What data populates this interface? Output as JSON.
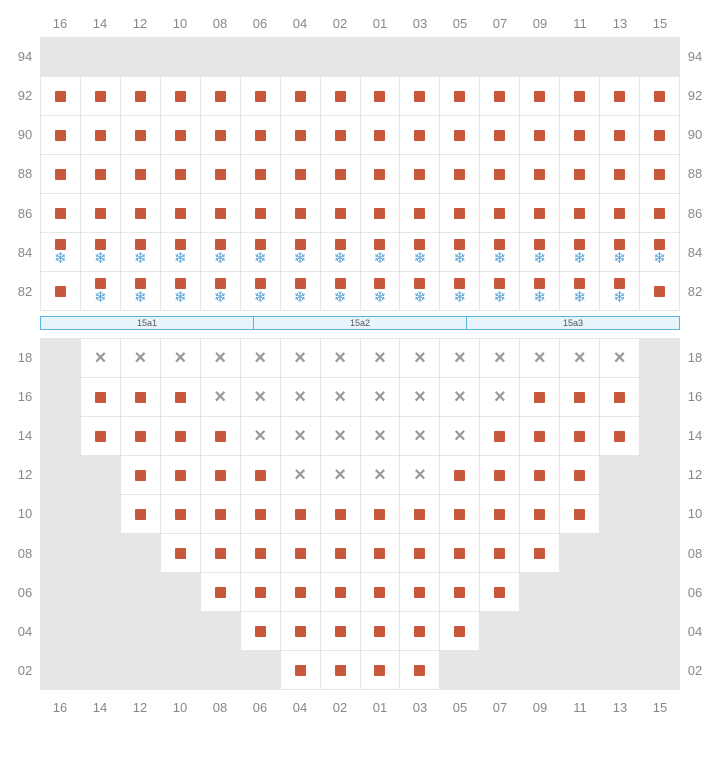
{
  "colors": {
    "seat_square": "#c9573b",
    "snowflake": "#5ba3d6",
    "cross": "#999",
    "grid_bg": "#e6e6e6",
    "cell_active": "#ffffff",
    "label": "#888",
    "section_border": "#5bb3e8",
    "section_bg": "#e8f4fb"
  },
  "columns": [
    "16",
    "14",
    "12",
    "10",
    "08",
    "06",
    "04",
    "02",
    "01",
    "03",
    "05",
    "07",
    "09",
    "11",
    "13",
    "15"
  ],
  "upper": {
    "row_labels": [
      "94",
      "92",
      "90",
      "88",
      "86",
      "84",
      "82"
    ],
    "rows": [
      [
        {
          "t": "gray"
        },
        {
          "t": "gray"
        },
        {
          "t": "gray"
        },
        {
          "t": "gray"
        },
        {
          "t": "gray"
        },
        {
          "t": "gray"
        },
        {
          "t": "gray"
        },
        {
          "t": "gray"
        },
        {
          "t": "gray"
        },
        {
          "t": "gray"
        },
        {
          "t": "gray"
        },
        {
          "t": "gray"
        },
        {
          "t": "gray"
        },
        {
          "t": "gray"
        },
        {
          "t": "gray"
        },
        {
          "t": "gray"
        }
      ],
      [
        {
          "t": "sq"
        },
        {
          "t": "sq"
        },
        {
          "t": "sq"
        },
        {
          "t": "sq"
        },
        {
          "t": "sq"
        },
        {
          "t": "sq"
        },
        {
          "t": "sq"
        },
        {
          "t": "sq"
        },
        {
          "t": "sq"
        },
        {
          "t": "sq"
        },
        {
          "t": "sq"
        },
        {
          "t": "sq"
        },
        {
          "t": "sq"
        },
        {
          "t": "sq"
        },
        {
          "t": "sq"
        },
        {
          "t": "sq"
        }
      ],
      [
        {
          "t": "sq"
        },
        {
          "t": "sq"
        },
        {
          "t": "sq"
        },
        {
          "t": "sq"
        },
        {
          "t": "sq"
        },
        {
          "t": "sq"
        },
        {
          "t": "sq"
        },
        {
          "t": "sq"
        },
        {
          "t": "sq"
        },
        {
          "t": "sq"
        },
        {
          "t": "sq"
        },
        {
          "t": "sq"
        },
        {
          "t": "sq"
        },
        {
          "t": "sq"
        },
        {
          "t": "sq"
        },
        {
          "t": "sq"
        }
      ],
      [
        {
          "t": "sq"
        },
        {
          "t": "sq"
        },
        {
          "t": "sq"
        },
        {
          "t": "sq"
        },
        {
          "t": "sq"
        },
        {
          "t": "sq"
        },
        {
          "t": "sq"
        },
        {
          "t": "sq"
        },
        {
          "t": "sq"
        },
        {
          "t": "sq"
        },
        {
          "t": "sq"
        },
        {
          "t": "sq"
        },
        {
          "t": "sq"
        },
        {
          "t": "sq"
        },
        {
          "t": "sq"
        },
        {
          "t": "sq"
        }
      ],
      [
        {
          "t": "sq"
        },
        {
          "t": "sq"
        },
        {
          "t": "sq"
        },
        {
          "t": "sq"
        },
        {
          "t": "sq"
        },
        {
          "t": "sq"
        },
        {
          "t": "sq"
        },
        {
          "t": "sq"
        },
        {
          "t": "sq"
        },
        {
          "t": "sq"
        },
        {
          "t": "sq"
        },
        {
          "t": "sq"
        },
        {
          "t": "sq"
        },
        {
          "t": "sq"
        },
        {
          "t": "sq"
        },
        {
          "t": "sq"
        }
      ],
      [
        {
          "t": "sqsn"
        },
        {
          "t": "sqsn"
        },
        {
          "t": "sqsn"
        },
        {
          "t": "sqsn"
        },
        {
          "t": "sqsn"
        },
        {
          "t": "sqsn"
        },
        {
          "t": "sqsn"
        },
        {
          "t": "sqsn"
        },
        {
          "t": "sqsn"
        },
        {
          "t": "sqsn"
        },
        {
          "t": "sqsn"
        },
        {
          "t": "sqsn"
        },
        {
          "t": "sqsn"
        },
        {
          "t": "sqsn"
        },
        {
          "t": "sqsn"
        },
        {
          "t": "sqsn"
        }
      ],
      [
        {
          "t": "sq"
        },
        {
          "t": "sqsn"
        },
        {
          "t": "sqsn"
        },
        {
          "t": "sqsn"
        },
        {
          "t": "sqsn"
        },
        {
          "t": "sqsn"
        },
        {
          "t": "sqsn"
        },
        {
          "t": "sqsn"
        },
        {
          "t": "sqsn"
        },
        {
          "t": "sqsn"
        },
        {
          "t": "sqsn"
        },
        {
          "t": "sqsn"
        },
        {
          "t": "sqsn"
        },
        {
          "t": "sqsn"
        },
        {
          "t": "sqsn"
        },
        {
          "t": "sq"
        }
      ]
    ]
  },
  "sections": [
    "15a1",
    "15a2",
    "15a3"
  ],
  "lower": {
    "row_labels": [
      "18",
      "16",
      "14",
      "12",
      "10",
      "08",
      "06",
      "04",
      "02"
    ],
    "rows": [
      [
        {
          "t": "gray"
        },
        {
          "t": "x"
        },
        {
          "t": "x"
        },
        {
          "t": "x"
        },
        {
          "t": "x"
        },
        {
          "t": "x"
        },
        {
          "t": "x"
        },
        {
          "t": "x"
        },
        {
          "t": "x"
        },
        {
          "t": "x"
        },
        {
          "t": "x"
        },
        {
          "t": "x"
        },
        {
          "t": "x"
        },
        {
          "t": "x"
        },
        {
          "t": "x"
        },
        {
          "t": "gray"
        }
      ],
      [
        {
          "t": "gray"
        },
        {
          "t": "sq"
        },
        {
          "t": "sq"
        },
        {
          "t": "sq"
        },
        {
          "t": "x"
        },
        {
          "t": "x"
        },
        {
          "t": "x"
        },
        {
          "t": "x"
        },
        {
          "t": "x"
        },
        {
          "t": "x"
        },
        {
          "t": "x"
        },
        {
          "t": "x"
        },
        {
          "t": "sq"
        },
        {
          "t": "sq"
        },
        {
          "t": "sq"
        },
        {
          "t": "gray"
        }
      ],
      [
        {
          "t": "gray"
        },
        {
          "t": "sq"
        },
        {
          "t": "sq"
        },
        {
          "t": "sq"
        },
        {
          "t": "sq"
        },
        {
          "t": "x"
        },
        {
          "t": "x"
        },
        {
          "t": "x"
        },
        {
          "t": "x"
        },
        {
          "t": "x"
        },
        {
          "t": "x"
        },
        {
          "t": "sq"
        },
        {
          "t": "sq"
        },
        {
          "t": "sq"
        },
        {
          "t": "sq"
        },
        {
          "t": "gray"
        }
      ],
      [
        {
          "t": "gray"
        },
        {
          "t": "gray"
        },
        {
          "t": "sq"
        },
        {
          "t": "sq"
        },
        {
          "t": "sq"
        },
        {
          "t": "sq"
        },
        {
          "t": "x"
        },
        {
          "t": "x"
        },
        {
          "t": "x"
        },
        {
          "t": "x"
        },
        {
          "t": "sq"
        },
        {
          "t": "sq"
        },
        {
          "t": "sq"
        },
        {
          "t": "sq"
        },
        {
          "t": "gray"
        },
        {
          "t": "gray"
        }
      ],
      [
        {
          "t": "gray"
        },
        {
          "t": "gray"
        },
        {
          "t": "sq"
        },
        {
          "t": "sq"
        },
        {
          "t": "sq"
        },
        {
          "t": "sq"
        },
        {
          "t": "sq"
        },
        {
          "t": "sq"
        },
        {
          "t": "sq"
        },
        {
          "t": "sq"
        },
        {
          "t": "sq"
        },
        {
          "t": "sq"
        },
        {
          "t": "sq"
        },
        {
          "t": "sq"
        },
        {
          "t": "gray"
        },
        {
          "t": "gray"
        }
      ],
      [
        {
          "t": "gray"
        },
        {
          "t": "gray"
        },
        {
          "t": "gray"
        },
        {
          "t": "sq"
        },
        {
          "t": "sq"
        },
        {
          "t": "sq"
        },
        {
          "t": "sq"
        },
        {
          "t": "sq"
        },
        {
          "t": "sq"
        },
        {
          "t": "sq"
        },
        {
          "t": "sq"
        },
        {
          "t": "sq"
        },
        {
          "t": "sq"
        },
        {
          "t": "gray"
        },
        {
          "t": "gray"
        },
        {
          "t": "gray"
        }
      ],
      [
        {
          "t": "gray"
        },
        {
          "t": "gray"
        },
        {
          "t": "gray"
        },
        {
          "t": "gray"
        },
        {
          "t": "sq"
        },
        {
          "t": "sq"
        },
        {
          "t": "sq"
        },
        {
          "t": "sq"
        },
        {
          "t": "sq"
        },
        {
          "t": "sq"
        },
        {
          "t": "sq"
        },
        {
          "t": "sq"
        },
        {
          "t": "gray"
        },
        {
          "t": "gray"
        },
        {
          "t": "gray"
        },
        {
          "t": "gray"
        }
      ],
      [
        {
          "t": "gray"
        },
        {
          "t": "gray"
        },
        {
          "t": "gray"
        },
        {
          "t": "gray"
        },
        {
          "t": "gray"
        },
        {
          "t": "sq"
        },
        {
          "t": "sq"
        },
        {
          "t": "sq"
        },
        {
          "t": "sq"
        },
        {
          "t": "sq"
        },
        {
          "t": "sq"
        },
        {
          "t": "gray"
        },
        {
          "t": "gray"
        },
        {
          "t": "gray"
        },
        {
          "t": "gray"
        },
        {
          "t": "gray"
        }
      ],
      [
        {
          "t": "gray"
        },
        {
          "t": "gray"
        },
        {
          "t": "gray"
        },
        {
          "t": "gray"
        },
        {
          "t": "gray"
        },
        {
          "t": "gray"
        },
        {
          "t": "sq"
        },
        {
          "t": "sq"
        },
        {
          "t": "sq"
        },
        {
          "t": "sq"
        },
        {
          "t": "gray"
        },
        {
          "t": "gray"
        },
        {
          "t": "gray"
        },
        {
          "t": "gray"
        },
        {
          "t": "gray"
        },
        {
          "t": "gray"
        }
      ]
    ]
  }
}
